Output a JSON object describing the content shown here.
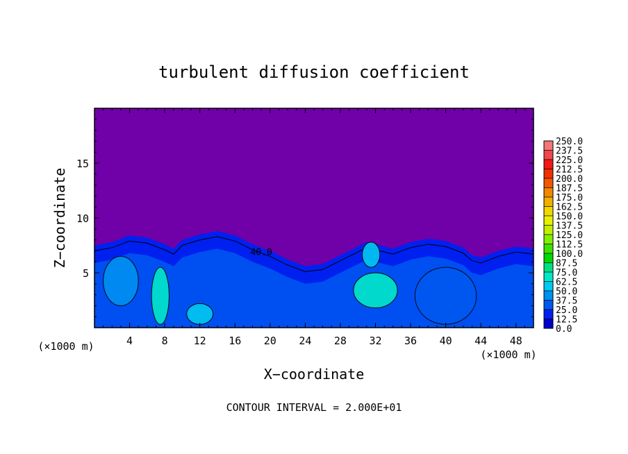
{
  "chart_data": {
    "type": "heatmap",
    "title": "turbulent diffusion coefficient",
    "xlabel": "X−coordinate",
    "ylabel": "Z−coordinate",
    "x_unit": "(×1000 m)",
    "x_unit_right": "(×1000 m)",
    "footer": "CONTOUR INTERVAL = 2.000E+01",
    "contour_interval": 20,
    "contour_annotation": "40.0",
    "xlim": [
      0,
      50
    ],
    "ylim": [
      0,
      20
    ],
    "x_ticks": [
      4,
      8,
      12,
      16,
      20,
      24,
      28,
      32,
      36,
      40,
      44,
      48
    ],
    "y_ticks": [
      5,
      10,
      15
    ],
    "colorbar": {
      "levels": [
        "250.0",
        "237.5",
        "225.0",
        "212.5",
        "200.0",
        "187.5",
        "175.0",
        "162.5",
        "150.0",
        "137.5",
        "125.0",
        "112.5",
        "100.0",
        "87.5",
        "75.0",
        "62.5",
        "50.0",
        "37.5",
        "25.0",
        "12.5",
        "0.0"
      ],
      "colors": [
        "#f07878",
        "#f04848",
        "#f01818",
        "#f03000",
        "#f05800",
        "#f08800",
        "#f0b000",
        "#f0d800",
        "#e8f000",
        "#c0f000",
        "#80f000",
        "#40e000",
        "#00d800",
        "#00e080",
        "#00e8c8",
        "#00c8f0",
        "#0090f0",
        "#0058f0",
        "#0020f0",
        "#0000c8",
        "#7000a8"
      ]
    },
    "background_color": "#7000a8",
    "field_description_hidden": true,
    "turbulent_layer_top_profile": {
      "x": [
        0,
        2,
        4,
        6,
        8,
        9,
        10,
        12,
        14,
        16,
        18,
        20,
        22,
        24,
        26,
        28,
        30,
        31,
        32,
        34,
        36,
        38,
        40,
        42,
        43,
        44,
        46,
        48,
        50
      ],
      "z": [
        7.5,
        7.8,
        8.4,
        8.2,
        7.6,
        7.2,
        8.0,
        8.5,
        8.8,
        8.4,
        7.6,
        7.0,
        6.2,
        5.6,
        5.8,
        6.6,
        7.4,
        7.8,
        7.6,
        7.2,
        7.8,
        8.1,
        7.9,
        7.3,
        6.6,
        6.4,
        7.0,
        7.4,
        7.2
      ]
    },
    "highlight_regions": [
      {
        "x": [
          6.5,
          8.5
        ],
        "z": [
          0.3,
          5.5
        ],
        "level": "75.0"
      },
      {
        "x": [
          10.5,
          13.5
        ],
        "z": [
          0.3,
          2.2
        ],
        "level": "62.5"
      },
      {
        "x": [
          29.5,
          34.5
        ],
        "z": [
          1.8,
          5.0
        ],
        "level": "75.0"
      },
      {
        "x": [
          30.5,
          32.5
        ],
        "z": [
          5.5,
          7.8
        ],
        "level": "62.5"
      },
      {
        "x": [
          1.0,
          5.0
        ],
        "z": [
          2.0,
          6.5
        ],
        "level": "50.0"
      },
      {
        "x": [
          36.5,
          43.5
        ],
        "z": [
          0.3,
          5.5
        ],
        "level": "37.5"
      }
    ]
  }
}
